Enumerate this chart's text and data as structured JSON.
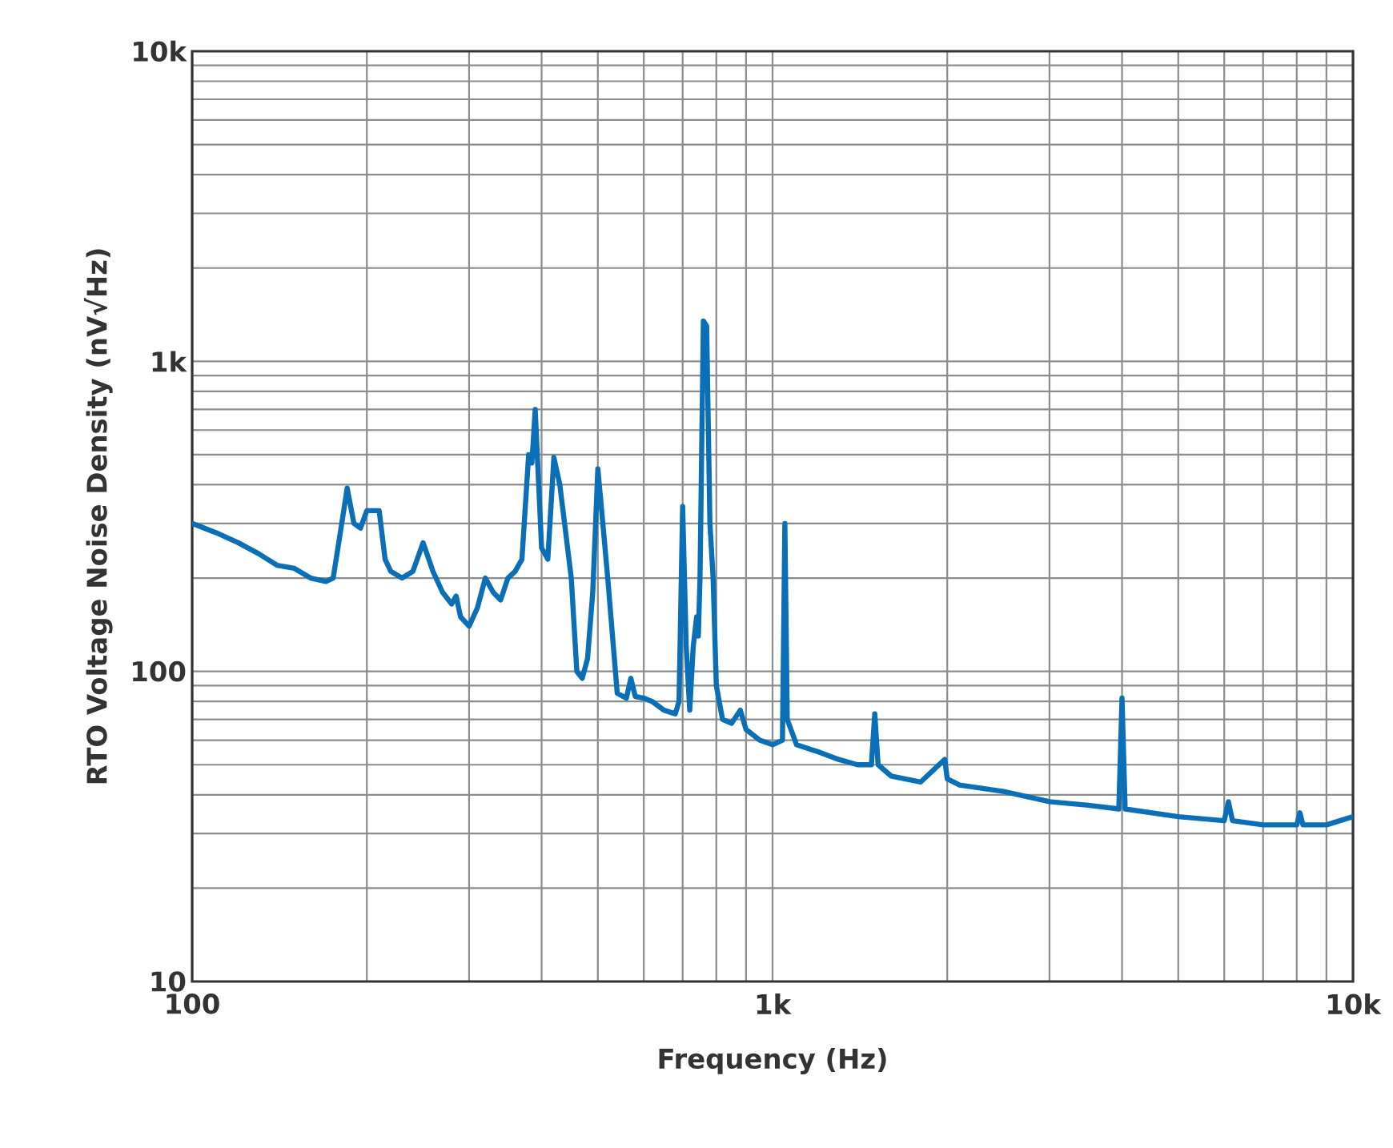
{
  "chart_data": {
    "type": "line",
    "xlabel": "Frequency (Hz)",
    "ylabel": "RTO Voltage Noise Density (nV√Hz)",
    "log": "xy",
    "grid": true,
    "marker": "none",
    "line_style": "solid",
    "xlim": [
      100,
      10000
    ],
    "ylim": [
      10,
      10000
    ],
    "xticks": [
      100,
      {
        "value": 1000,
        "label": "1k"
      },
      {
        "value": 10000,
        "label": "10k"
      }
    ],
    "yticks": [
      10,
      100,
      {
        "value": 1000,
        "label": "1k"
      },
      {
        "value": 10000,
        "label": "10k"
      }
    ],
    "series": [
      {
        "color": "#0a6fb7",
        "x": [
          100,
          110,
          120,
          130,
          140,
          150,
          160,
          170,
          175,
          180,
          185,
          190,
          195,
          200,
          205,
          210,
          215,
          220,
          230,
          240,
          250,
          260,
          270,
          280,
          285,
          290,
          300,
          310,
          320,
          330,
          340,
          350,
          360,
          370,
          380,
          385,
          390,
          395,
          400,
          410,
          420,
          430,
          450,
          460,
          470,
          480,
          490,
          500,
          510,
          520,
          540,
          560,
          570,
          580,
          600,
          620,
          650,
          680,
          690,
          700,
          710,
          720,
          730,
          740,
          745,
          750,
          760,
          770,
          780,
          790,
          800,
          820,
          850,
          880,
          900,
          950,
          1000,
          1040,
          1050,
          1060,
          1100,
          1200,
          1300,
          1400,
          1480,
          1500,
          1520,
          1600,
          1800,
          1980,
          2000,
          2100,
          2500,
          3000,
          3500,
          3950,
          4000,
          4050,
          5000,
          6000,
          6100,
          6200,
          7000,
          8000,
          8100,
          8200,
          9000,
          10000
        ],
        "values": [
          300,
          280,
          260,
          240,
          220,
          215,
          200,
          195,
          200,
          280,
          390,
          300,
          290,
          330,
          330,
          330,
          230,
          210,
          200,
          210,
          260,
          210,
          180,
          165,
          175,
          150,
          140,
          160,
          200,
          180,
          170,
          200,
          210,
          230,
          500,
          470,
          700,
          420,
          250,
          230,
          490,
          400,
          200,
          100,
          95,
          110,
          180,
          450,
          300,
          200,
          85,
          82,
          95,
          83,
          82,
          80,
          75,
          73,
          80,
          340,
          120,
          75,
          120,
          150,
          130,
          200,
          1350,
          1300,
          300,
          200,
          90,
          70,
          68,
          75,
          65,
          60,
          58,
          60,
          300,
          70,
          58,
          55,
          52,
          50,
          50,
          73,
          50,
          46,
          44,
          52,
          45,
          43,
          41,
          38,
          37,
          36,
          82,
          36,
          34,
          33,
          38,
          33,
          32,
          32,
          35,
          32,
          32,
          34
        ]
      }
    ]
  }
}
